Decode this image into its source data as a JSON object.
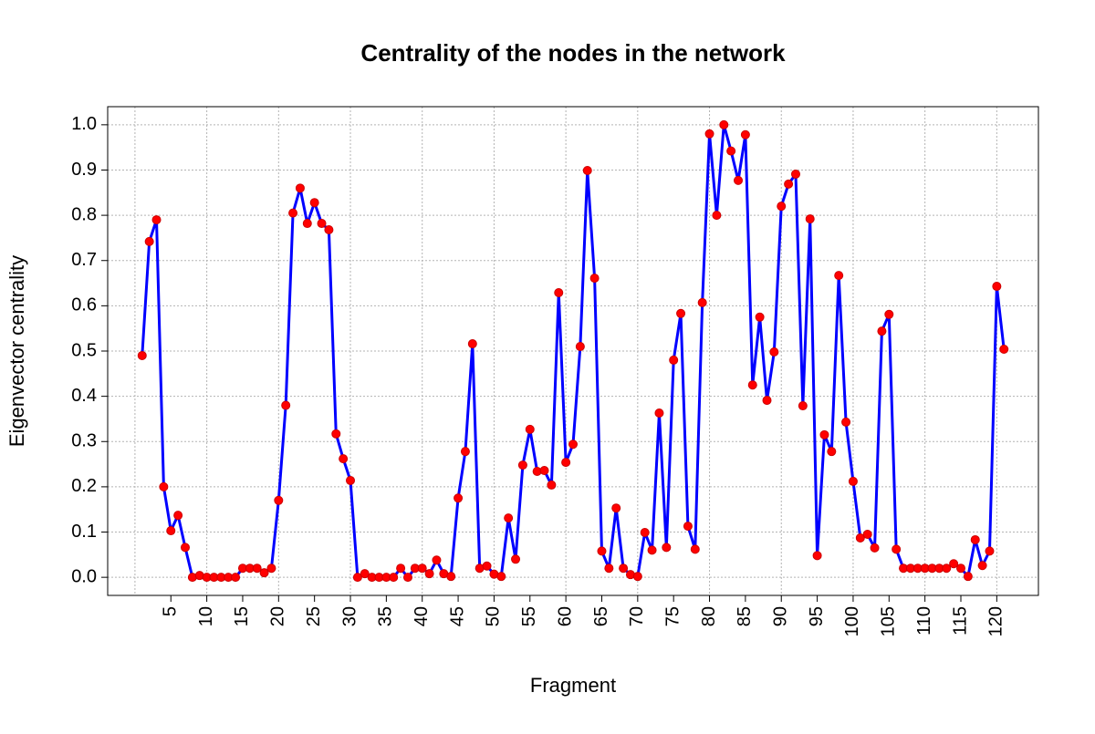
{
  "chart_data": {
    "type": "line",
    "title": "Centrality of the nodes in the network",
    "xlabel": "Fragment",
    "ylabel": "Eigenvector centrality",
    "x": [
      1,
      2,
      3,
      4,
      5,
      6,
      7,
      8,
      9,
      10,
      11,
      12,
      13,
      14,
      15,
      16,
      17,
      18,
      19,
      20,
      21,
      22,
      23,
      24,
      25,
      26,
      27,
      28,
      29,
      30,
      31,
      32,
      33,
      34,
      35,
      36,
      37,
      38,
      39,
      40,
      41,
      42,
      43,
      44,
      45,
      46,
      47,
      48,
      49,
      50,
      51,
      52,
      53,
      54,
      55,
      56,
      57,
      58,
      59,
      60,
      61,
      62,
      63,
      64,
      65,
      66,
      67,
      68,
      69,
      70,
      71,
      72,
      73,
      74,
      75,
      76,
      77,
      78,
      79,
      80,
      81,
      82,
      83,
      84,
      85,
      86,
      87,
      88,
      89,
      90,
      91,
      92,
      93,
      94,
      95,
      96,
      97,
      98,
      99,
      100,
      101,
      102,
      103,
      104,
      105,
      106,
      107,
      108,
      109,
      110,
      111,
      112,
      113,
      114,
      115,
      116,
      117,
      118,
      119,
      120,
      121
    ],
    "values": [
      0.49,
      0.742,
      0.79,
      0.2,
      0.103,
      0.137,
      0.066,
      0,
      0.004,
      0,
      0,
      0,
      0,
      0,
      0.02,
      0.02,
      0.02,
      0.01,
      0.02,
      0.17,
      0.38,
      0.805,
      0.86,
      0.782,
      0.828,
      0.782,
      0.768,
      0.317,
      0.262,
      0.214,
      0,
      0.008,
      0,
      0,
      0,
      0,
      0.02,
      0,
      0.02,
      0.02,
      0.008,
      0.038,
      0.008,
      0.002,
      0.175,
      0.278,
      0.516,
      0.02,
      0.025,
      0.007,
      0.002,
      0.131,
      0.04,
      0.248,
      0.327,
      0.234,
      0.236,
      0.204,
      0.629,
      0.254,
      0.294,
      0.51,
      0.899,
      0.661,
      0.058,
      0.02,
      0.153,
      0.02,
      0.006,
      0.002,
      0.099,
      0.06,
      0.363,
      0.066,
      0.48,
      0.583,
      0.113,
      0.062,
      0.607,
      0.98,
      0.8,
      1.0,
      0.942,
      0.877,
      0.978,
      0.425,
      0.575,
      0.391,
      0.498,
      0.82,
      0.869,
      0.891,
      0.379,
      0.792,
      0.048,
      0.315,
      0.278,
      0.667,
      0.343,
      0.212,
      0.087,
      0.095,
      0.065,
      0.544,
      0.581,
      0.062,
      0.02,
      0.02,
      0.02,
      0.02,
      0.02,
      0.02,
      0.02,
      0.03,
      0.02,
      0.002,
      0.083,
      0.026,
      0.058,
      0.643,
      0.504
    ],
    "line_color": "#0000ff",
    "point_color": "#ff0000",
    "xlim": [
      -3.8,
      125.8
    ],
    "ylim": [
      -0.04,
      1.04
    ],
    "xticks": [
      5,
      10,
      15,
      20,
      25,
      30,
      35,
      40,
      45,
      50,
      55,
      60,
      65,
      70,
      75,
      80,
      85,
      90,
      95,
      100,
      105,
      110,
      115,
      120
    ],
    "xgrid": [
      0,
      10,
      20,
      30,
      40,
      50,
      60,
      70,
      80,
      90,
      100,
      110,
      120
    ],
    "yticks": [
      {
        "value": 0,
        "label": "0.0"
      },
      0.1,
      0.2,
      0.3,
      0.4,
      0.5,
      0.6,
      0.7,
      0.8,
      0.9,
      {
        "value": 1,
        "label": "1.0"
      }
    ],
    "grid": true
  }
}
